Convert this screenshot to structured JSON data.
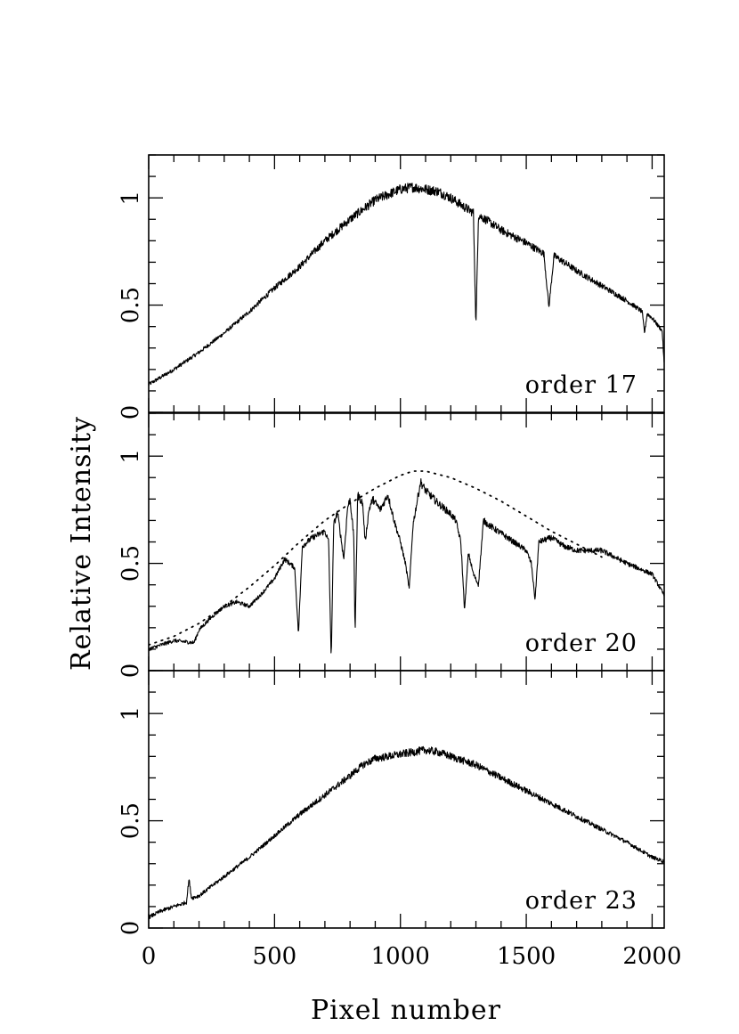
{
  "chart_data": {
    "type": "line",
    "xlabel": "Pixel number",
    "ylabel": "Relative Intensity",
    "xlim": [
      0,
      2048
    ],
    "x_ticks": [
      0,
      500,
      1000,
      1500,
      2000
    ],
    "x_tick_labels": [
      "0",
      "500",
      "1000",
      "1500",
      "2000"
    ],
    "grid": false,
    "panels": [
      {
        "label": "order 17",
        "ylim": [
          0,
          1.2
        ],
        "y_ticks": [
          0,
          0.5,
          1
        ],
        "y_tick_labels": [
          "0",
          "0.5",
          "1"
        ],
        "series": [
          {
            "style": "solid",
            "x": [
              0,
              100,
              200,
              300,
              400,
              500,
              600,
              700,
              800,
              900,
              1000,
              1050,
              1100,
              1150,
              1200,
              1250,
              1290,
              1300,
              1310,
              1350,
              1400,
              1500,
              1570,
              1590,
              1610,
              1650,
              1700,
              1800,
              1900,
              1960,
              1970,
              1980,
              2000,
              2040,
              2048
            ],
            "y": [
              0.13,
              0.2,
              0.28,
              0.37,
              0.47,
              0.58,
              0.68,
              0.8,
              0.9,
              0.99,
              1.04,
              1.05,
              1.04,
              1.03,
              1.0,
              0.96,
              0.93,
              0.4,
              0.92,
              0.89,
              0.85,
              0.79,
              0.74,
              0.49,
              0.73,
              0.7,
              0.66,
              0.59,
              0.52,
              0.47,
              0.37,
              0.46,
              0.44,
              0.38,
              0.22
            ]
          }
        ]
      },
      {
        "label": "order 20",
        "ylim": [
          0,
          1.2
        ],
        "y_ticks": [
          0,
          0.5,
          1
        ],
        "y_tick_labels": [
          "0",
          "0.5",
          "1"
        ],
        "series": [
          {
            "style": "solid",
            "x": [
              0,
              100,
              180,
              200,
              250,
              300,
              350,
              400,
              450,
              500,
              540,
              560,
              580,
              595,
              610,
              630,
              650,
              700,
              715,
              725,
              735,
              750,
              775,
              790,
              800,
              815,
              820,
              830,
              850,
              860,
              875,
              890,
              920,
              950,
              975,
              1000,
              1020,
              1035,
              1050,
              1080,
              1100,
              1150,
              1200,
              1220,
              1240,
              1255,
              1270,
              1290,
              1310,
              1330,
              1350,
              1400,
              1450,
              1500,
              1520,
              1535,
              1550,
              1600,
              1650,
              1700,
              1800,
              1900,
              2000,
              2048
            ],
            "y": [
              0.1,
              0.14,
              0.13,
              0.19,
              0.25,
              0.3,
              0.32,
              0.3,
              0.36,
              0.43,
              0.52,
              0.5,
              0.48,
              0.17,
              0.58,
              0.6,
              0.62,
              0.65,
              0.6,
              0.05,
              0.68,
              0.74,
              0.52,
              0.76,
              0.8,
              0.62,
              0.16,
              0.82,
              0.78,
              0.6,
              0.75,
              0.8,
              0.75,
              0.82,
              0.7,
              0.6,
              0.5,
              0.38,
              0.68,
              0.88,
              0.84,
              0.78,
              0.73,
              0.7,
              0.6,
              0.28,
              0.55,
              0.45,
              0.4,
              0.7,
              0.68,
              0.64,
              0.6,
              0.56,
              0.5,
              0.33,
              0.6,
              0.62,
              0.58,
              0.56,
              0.56,
              0.5,
              0.45,
              0.35
            ]
          },
          {
            "style": "dotted",
            "x": [
              0,
              100,
              200,
              300,
              400,
              500,
              600,
              700,
              800,
              900,
              1000,
              1050,
              1100,
              1200,
              1300,
              1400,
              1500,
              1600,
              1700,
              1800
            ],
            "y": [
              0.12,
              0.16,
              0.22,
              0.3,
              0.39,
              0.49,
              0.6,
              0.7,
              0.78,
              0.85,
              0.91,
              0.93,
              0.93,
              0.9,
              0.85,
              0.79,
              0.72,
              0.65,
              0.59,
              0.53
            ]
          }
        ]
      },
      {
        "label": "order 23",
        "ylim": [
          0,
          1.2
        ],
        "y_ticks": [
          0,
          0.5,
          1
        ],
        "y_tick_labels": [
          "0",
          "0.5",
          "1"
        ],
        "series": [
          {
            "style": "solid",
            "x": [
              0,
              50,
              100,
              150,
              160,
              170,
              200,
              300,
              400,
              500,
              600,
              700,
              800,
              850,
              900,
              1000,
              1100,
              1150,
              1200,
              1300,
              1400,
              1500,
              1600,
              1700,
              1800,
              1900,
              2000,
              2048
            ],
            "y": [
              0.05,
              0.08,
              0.1,
              0.12,
              0.23,
              0.14,
              0.15,
              0.24,
              0.33,
              0.43,
              0.53,
              0.62,
              0.71,
              0.76,
              0.79,
              0.81,
              0.83,
              0.82,
              0.8,
              0.76,
              0.7,
              0.64,
              0.58,
              0.52,
              0.46,
              0.4,
              0.33,
              0.31
            ]
          }
        ]
      }
    ]
  }
}
